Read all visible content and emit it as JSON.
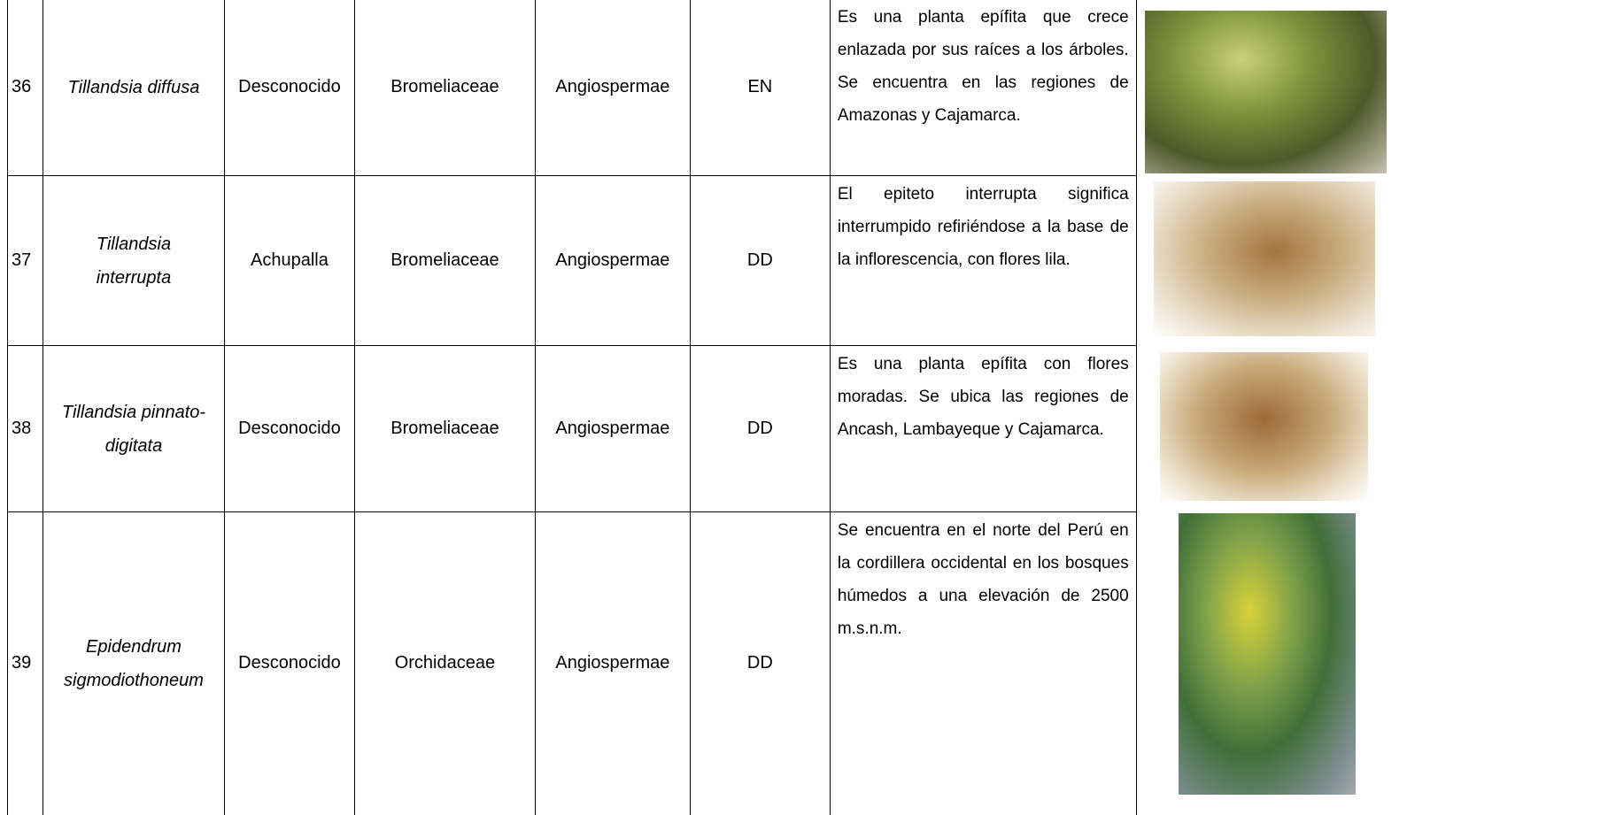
{
  "table": {
    "rows": [
      [
        "36",
        "Tillandsia diffusa",
        "Desconocido",
        "Bromeliaceae",
        "Angiospermae",
        "EN",
        "Es una planta epífita que crece enlazada por sus raíces a los árboles. Se encuentra en las regiones de Amazonas y Cajamarca."
      ],
      [
        "37",
        "Tillandsia interrupta",
        "Achupalla",
        "Bromeliaceae",
        "Angiospermae",
        "DD",
        "El epiteto interrupta significa interrumpido refiriéndose a la base de la inflorescencia, con flores lila."
      ],
      [
        "38",
        "Tillandsia pinnato-digitata",
        "Desconocido",
        "Bromeliaceae",
        "Angiospermae",
        "DD",
        "Es una planta epífita con flores moradas. Se ubica las regiones de Ancash, Lambayeque y Cajamarca."
      ],
      [
        "39",
        "Epidendrum sigmodiothoneum",
        "Desconocido",
        "Orchidaceae",
        "Angiospermae",
        "DD",
        "Se encuentra en el norte del Perú en la cordillera occidental en los bosques húmedos a una elevación de 2500 m.s.n.m."
      ]
    ]
  }
}
